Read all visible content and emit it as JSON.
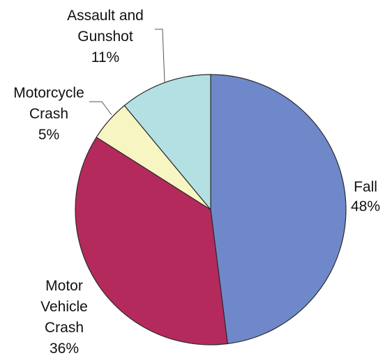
{
  "chart_data": {
    "type": "pie",
    "title": "",
    "slices": [
      {
        "label_lines": [
          "Fall",
          "48%"
        ],
        "category": "Fall",
        "value": 48,
        "color": "#6f88c9"
      },
      {
        "label_lines": [
          "Motor",
          "Vehicle",
          "Crash",
          "36%"
        ],
        "category": "Motor Vehicle Crash",
        "value": 36,
        "color": "#b52a5d"
      },
      {
        "label_lines": [
          "Motorcycle",
          "Crash",
          "5%"
        ],
        "category": "Motorcycle Crash",
        "value": 5,
        "color": "#f7f5c2"
      },
      {
        "label_lines": [
          "Assault and",
          "Gunshot",
          "11%"
        ],
        "category": "Assault and Gunshot",
        "value": 11,
        "color": "#b3e1e3"
      }
    ],
    "start_angle": "12 o'clock",
    "direction": "clockwise",
    "legend": "none",
    "labels": "outside with leader lines for small slices"
  }
}
